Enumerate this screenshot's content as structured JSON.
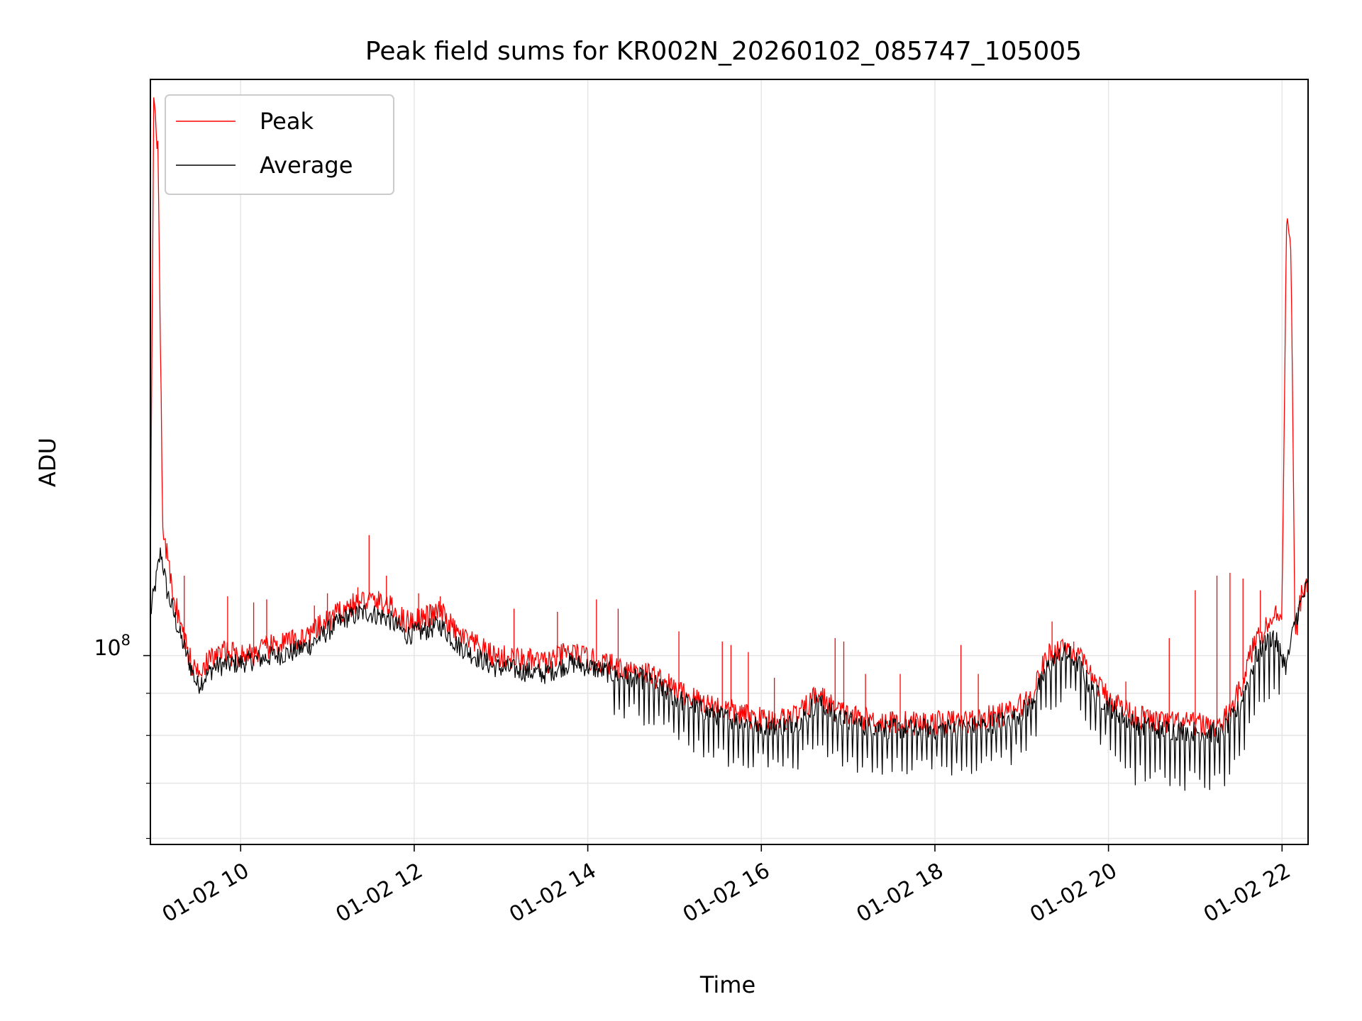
{
  "chart_data": {
    "type": "line",
    "title": "Peak field sums for KR002N_20260102_085747_105005",
    "xlabel": "Time",
    "ylabel": "ADU",
    "y_scale": "log",
    "y_tick_label": {
      "base": "10",
      "exponent": "8",
      "value": 100000000
    },
    "y_minor_ticks": [
      60000000,
      70000000,
      80000000,
      90000000
    ],
    "ylim": [
      59000000,
      500000000
    ],
    "xlim_hours": [
      8.96,
      22.3
    ],
    "x_ticks": [
      {
        "hour": 10,
        "label": "01-02 10"
      },
      {
        "hour": 12,
        "label": "01-02 12"
      },
      {
        "hour": 14,
        "label": "01-02 14"
      },
      {
        "hour": 16,
        "label": "01-02 16"
      },
      {
        "hour": 18,
        "label": "01-02 18"
      },
      {
        "hour": 20,
        "label": "01-02 20"
      },
      {
        "hour": 22,
        "label": "01-02 22"
      }
    ],
    "grid": true,
    "legend_position": "top-left",
    "series": [
      {
        "name": "Peak",
        "color": "#ff0000",
        "points": [
          [
            8.96,
            130000000
          ],
          [
            9.0,
            500000000
          ],
          [
            9.05,
            400000000
          ],
          [
            9.1,
            145000000
          ],
          [
            9.2,
            122000000
          ],
          [
            9.3,
            110000000
          ],
          [
            9.45,
            96000000
          ],
          [
            9.6,
            98000000
          ],
          [
            9.8,
            101000000
          ],
          [
            10.0,
            100000000
          ],
          [
            10.2,
            101000000
          ],
          [
            10.4,
            103000000
          ],
          [
            10.6,
            104000000
          ],
          [
            10.8,
            106000000
          ],
          [
            11.0,
            110000000
          ],
          [
            11.2,
            114000000
          ],
          [
            11.45,
            117000000
          ],
          [
            11.7,
            115000000
          ],
          [
            11.9,
            110000000
          ],
          [
            12.1,
            111000000
          ],
          [
            12.3,
            113000000
          ],
          [
            12.5,
            106000000
          ],
          [
            12.7,
            103000000
          ],
          [
            12.9,
            100000000
          ],
          [
            13.2,
            99000000
          ],
          [
            13.5,
            98000000
          ],
          [
            13.8,
            101000000
          ],
          [
            14.0,
            99000000
          ],
          [
            14.3,
            97000000
          ],
          [
            14.6,
            96000000
          ],
          [
            14.8,
            94000000
          ],
          [
            15.0,
            91000000
          ],
          [
            15.3,
            88000000
          ],
          [
            15.6,
            86000000
          ],
          [
            15.9,
            84000000
          ],
          [
            16.2,
            83500000
          ],
          [
            16.45,
            85000000
          ],
          [
            16.65,
            90000000
          ],
          [
            16.85,
            86000000
          ],
          [
            17.1,
            84000000
          ],
          [
            17.5,
            83000000
          ],
          [
            18.0,
            82800000
          ],
          [
            18.5,
            83500000
          ],
          [
            18.9,
            85500000
          ],
          [
            19.1,
            89000000
          ],
          [
            19.3,
            100000000
          ],
          [
            19.5,
            103000000
          ],
          [
            19.65,
            100000000
          ],
          [
            19.8,
            94000000
          ],
          [
            20.0,
            89000000
          ],
          [
            20.3,
            84500000
          ],
          [
            20.6,
            83000000
          ],
          [
            21.0,
            82500000
          ],
          [
            21.3,
            82000000
          ],
          [
            21.5,
            90000000
          ],
          [
            21.7,
            105000000
          ],
          [
            21.9,
            111000000
          ],
          [
            22.0,
            114000000
          ],
          [
            22.05,
            335000000
          ],
          [
            22.1,
            322000000
          ],
          [
            22.15,
            105000000
          ],
          [
            22.22,
            118000000
          ],
          [
            22.3,
            124000000
          ]
        ],
        "spikes": [
          [
            9.35,
            125000000
          ],
          [
            9.85,
            118000000
          ],
          [
            10.15,
            116000000
          ],
          [
            10.3,
            117000000
          ],
          [
            10.85,
            115000000
          ],
          [
            11.0,
            119000000
          ],
          [
            11.35,
            121000000
          ],
          [
            11.48,
            140000000
          ],
          [
            11.68,
            125000000
          ],
          [
            12.05,
            119000000
          ],
          [
            12.3,
            118000000
          ],
          [
            13.15,
            114000000
          ],
          [
            13.65,
            113000000
          ],
          [
            14.1,
            117000000
          ],
          [
            14.35,
            114000000
          ],
          [
            15.05,
            107000000
          ],
          [
            15.55,
            104000000
          ],
          [
            15.65,
            103000000
          ],
          [
            15.85,
            101000000
          ],
          [
            16.15,
            94000000
          ],
          [
            16.85,
            105000000
          ],
          [
            16.95,
            104000000
          ],
          [
            17.2,
            95000000
          ],
          [
            17.6,
            95000000
          ],
          [
            18.3,
            103000000
          ],
          [
            18.5,
            95000000
          ],
          [
            19.35,
            110000000
          ],
          [
            19.6,
            104000000
          ],
          [
            20.2,
            93000000
          ],
          [
            20.7,
            105000000
          ],
          [
            21.0,
            120000000
          ],
          [
            21.25,
            125000000
          ],
          [
            21.4,
            126000000
          ],
          [
            21.55,
            124000000
          ],
          [
            21.75,
            120000000
          ]
        ]
      },
      {
        "name": "Average",
        "color": "#000000",
        "points": [
          [
            8.96,
            112000000
          ],
          [
            9.08,
            134000000
          ],
          [
            9.15,
            120000000
          ],
          [
            9.3,
            106000000
          ],
          [
            9.5,
            92000000
          ],
          [
            9.7,
            97000000
          ],
          [
            10.0,
            98000000
          ],
          [
            10.2,
            99000000
          ],
          [
            10.4,
            100000000
          ],
          [
            10.6,
            101000000
          ],
          [
            10.8,
            103000000
          ],
          [
            11.0,
            107000000
          ],
          [
            11.2,
            111000000
          ],
          [
            11.45,
            113000000
          ],
          [
            11.7,
            111000000
          ],
          [
            11.9,
            106000000
          ],
          [
            12.1,
            107000000
          ],
          [
            12.3,
            109000000
          ],
          [
            12.5,
            103000000
          ],
          [
            12.7,
            100000000
          ],
          [
            12.9,
            97000000
          ],
          [
            13.2,
            96000000
          ],
          [
            13.5,
            95000000
          ],
          [
            13.8,
            98000000
          ],
          [
            14.0,
            97000000
          ],
          [
            14.3,
            95000000
          ],
          [
            14.6,
            94000000
          ],
          [
            14.8,
            92000000
          ],
          [
            15.0,
            89000000
          ],
          [
            15.3,
            86000000
          ],
          [
            15.6,
            84000000
          ],
          [
            15.9,
            82500000
          ],
          [
            16.2,
            82000000
          ],
          [
            16.45,
            83500000
          ],
          [
            16.65,
            88000000
          ],
          [
            16.85,
            84500000
          ],
          [
            17.1,
            82500000
          ],
          [
            17.5,
            81500000
          ],
          [
            18.0,
            81500000
          ],
          [
            18.5,
            82000000
          ],
          [
            18.9,
            84000000
          ],
          [
            19.1,
            87000000
          ],
          [
            19.3,
            97000000
          ],
          [
            19.5,
            101000000
          ],
          [
            19.65,
            98000000
          ],
          [
            19.8,
            91000000
          ],
          [
            20.0,
            87000000
          ],
          [
            20.3,
            82500000
          ],
          [
            20.6,
            81500000
          ],
          [
            21.0,
            81000000
          ],
          [
            21.3,
            80500000
          ],
          [
            21.5,
            86000000
          ],
          [
            21.7,
            100000000
          ],
          [
            21.9,
            106000000
          ],
          [
            22.05,
            97000000
          ],
          [
            22.15,
            110000000
          ],
          [
            22.22,
            116000000
          ],
          [
            22.3,
            122000000
          ]
        ]
      }
    ]
  }
}
